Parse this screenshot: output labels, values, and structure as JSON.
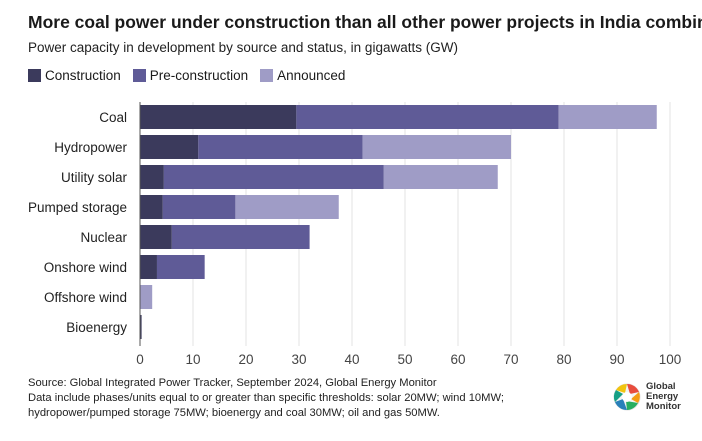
{
  "title": "More coal power under construction than all other power projects in India combined",
  "subtitle": "Power capacity in development by source and status, in gigawatts (GW)",
  "legend": {
    "construction": "Construction",
    "pre_construction": "Pre-construction",
    "announced": "Announced"
  },
  "colors": {
    "construction": "#3b3a5c",
    "pre_construction": "#5f5b97",
    "announced": "#9f9cc6"
  },
  "footer": {
    "source": "Source: Global Integrated Power Tracker, September 2024, Global Energy Monitor",
    "note_line1": "Data include phases/units equal to or greater than specific thresholds: solar 20MW; wind 10MW;",
    "note_line2": "hydropower/pumped storage 75MW; bioenergy and coal 30MW; oil and gas 50MW."
  },
  "logo": {
    "line1": "Global",
    "line2": "Energy",
    "line3": "Monitor",
    "icon": "globe-icon"
  },
  "chart_data": {
    "type": "bar",
    "orientation": "horizontal",
    "stacked": true,
    "categories": [
      "Coal",
      "Hydropower",
      "Utility solar",
      "Pumped storage",
      "Nuclear",
      "Onshore wind",
      "Offshore wind",
      "Bioenergy"
    ],
    "series": [
      {
        "name": "Construction",
        "values": [
          29.5,
          11,
          4.5,
          4.3,
          6,
          3.2,
          0,
          0.3
        ]
      },
      {
        "name": "Pre-construction",
        "values": [
          49.5,
          31,
          41.5,
          13.7,
          26,
          9,
          0,
          0
        ]
      },
      {
        "name": "Announced",
        "values": [
          18.5,
          28,
          21.5,
          19.5,
          0,
          0,
          2.3,
          0
        ]
      }
    ],
    "xlim": [
      0,
      100
    ],
    "xticks": [
      0,
      10,
      20,
      30,
      40,
      50,
      60,
      70,
      80,
      90,
      100
    ],
    "grid": true,
    "legend_position": "top-left"
  }
}
